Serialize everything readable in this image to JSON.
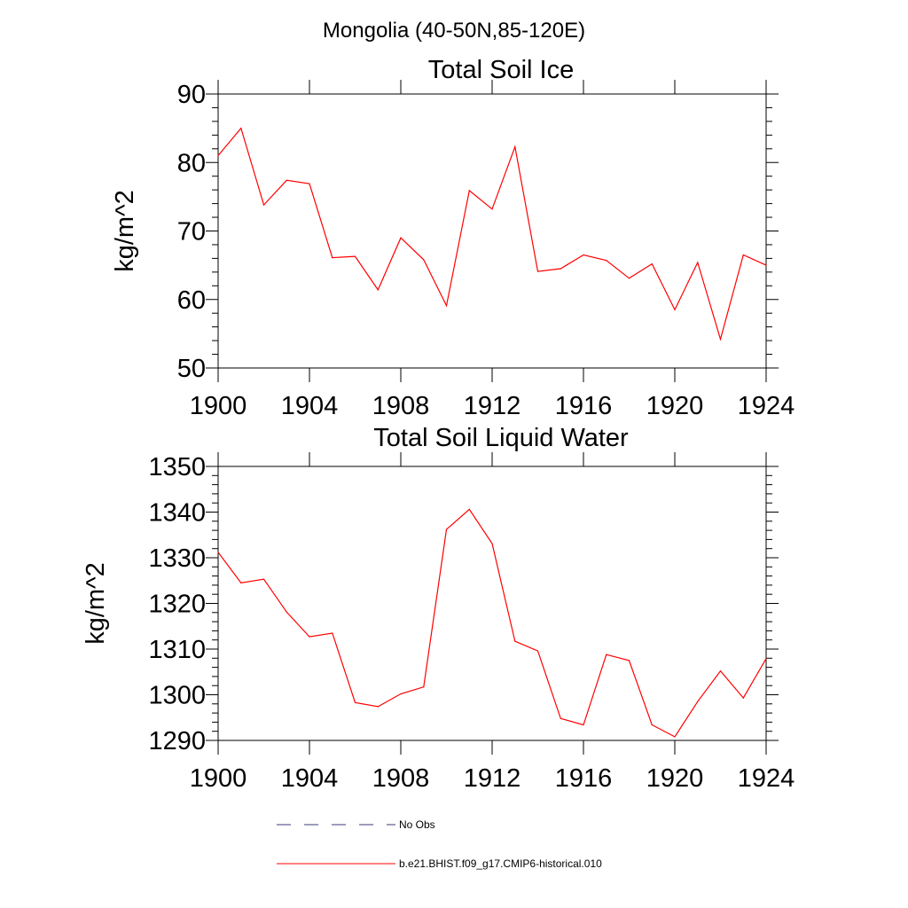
{
  "figure": {
    "main_title": "Mongolia (40-50N,85-120E)",
    "line_color": "#ff0000",
    "obs_color": "#3a3a7a"
  },
  "legend": {
    "entries": [
      {
        "label": "No Obs",
        "style": "dashed",
        "color": "#3a3a7a"
      },
      {
        "label": "b.e21.BHIST.f09_g17.CMIP6-historical.010",
        "style": "solid",
        "color": "#ff0000"
      }
    ]
  },
  "chart_data": [
    {
      "type": "line",
      "title": "Total Soil Ice",
      "xlabel": "",
      "ylabel": "kg/m^2",
      "xlim": [
        1900,
        1924
      ],
      "ylim": [
        50,
        90
      ],
      "xticks": [
        1900,
        1904,
        1908,
        1912,
        1916,
        1920,
        1924
      ],
      "yticks": [
        50,
        60,
        70,
        80,
        90
      ],
      "x": [
        1900,
        1901,
        1902,
        1903,
        1904,
        1905,
        1906,
        1907,
        1908,
        1909,
        1910,
        1911,
        1912,
        1913,
        1914,
        1915,
        1916,
        1917,
        1918,
        1919,
        1920,
        1921,
        1922,
        1923,
        1924
      ],
      "series": [
        {
          "name": "b.e21.BHIST.f09_g17.CMIP6-historical.010",
          "values": [
            81.0,
            85.0,
            73.8,
            77.4,
            76.9,
            66.1,
            66.3,
            61.4,
            69.0,
            65.8,
            59.1,
            75.9,
            73.2,
            82.3,
            64.1,
            64.5,
            66.5,
            65.7,
            63.1,
            65.2,
            58.5,
            65.4,
            54.2,
            66.5,
            65.0
          ]
        }
      ]
    },
    {
      "type": "line",
      "title": "Total Soil Liquid Water",
      "xlabel": "",
      "ylabel": "kg/m^2",
      "xlim": [
        1900,
        1924
      ],
      "ylim": [
        1290,
        1350
      ],
      "xticks": [
        1900,
        1904,
        1908,
        1912,
        1916,
        1920,
        1924
      ],
      "yticks": [
        1290,
        1300,
        1310,
        1320,
        1330,
        1340,
        1350
      ],
      "x": [
        1900,
        1901,
        1902,
        1903,
        1904,
        1905,
        1906,
        1907,
        1908,
        1909,
        1910,
        1911,
        1912,
        1913,
        1914,
        1915,
        1916,
        1917,
        1918,
        1919,
        1920,
        1921,
        1922,
        1923,
        1924
      ],
      "series": [
        {
          "name": "b.e21.BHIST.f09_g17.CMIP6-historical.010",
          "values": [
            1331.2,
            1324.5,
            1325.3,
            1318.1,
            1312.7,
            1313.5,
            1298.3,
            1297.4,
            1300.2,
            1301.7,
            1336.2,
            1340.6,
            1333.1,
            1311.7,
            1309.6,
            1294.8,
            1293.4,
            1308.8,
            1307.5,
            1293.4,
            1290.8,
            1298.5,
            1305.2,
            1299.3,
            1307.9
          ]
        }
      ]
    }
  ]
}
